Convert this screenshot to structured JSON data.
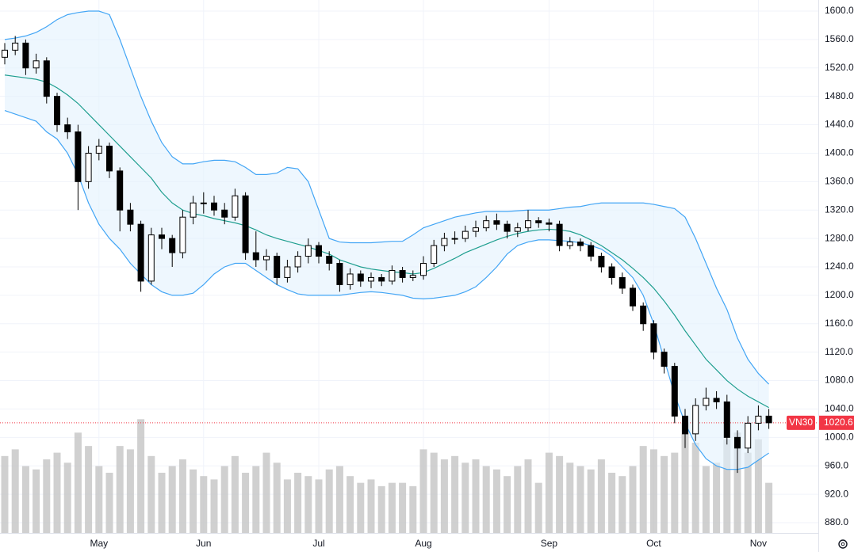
{
  "chart_data": {
    "type": "candlestick",
    "symbol": "VN30",
    "categories": [
      null,
      null,
      null,
      null,
      null,
      null,
      null,
      null,
      null,
      "May",
      null,
      null,
      null,
      null,
      null,
      null,
      null,
      null,
      null,
      "Jun",
      null,
      null,
      null,
      null,
      null,
      null,
      null,
      null,
      null,
      null,
      "Jul",
      null,
      null,
      null,
      null,
      null,
      null,
      null,
      null,
      null,
      "Aug",
      null,
      null,
      null,
      null,
      null,
      null,
      null,
      null,
      null,
      null,
      null,
      "Sep",
      null,
      null,
      null,
      null,
      null,
      null,
      null,
      null,
      null,
      "Oct",
      null,
      null,
      null,
      null,
      null,
      null,
      null,
      null,
      null,
      "Nov",
      null
    ],
    "open": [
      1535,
      1545,
      1555,
      1520,
      1530,
      1480,
      1440,
      1430,
      1360,
      1400,
      1410,
      1375,
      1320,
      1300,
      1220,
      1285,
      1280,
      1260,
      1310,
      1330,
      1330,
      1320,
      1310,
      1340,
      1260,
      1250,
      1255,
      1225,
      1240,
      1255,
      1270,
      1255,
      1245,
      1215,
      1230,
      1220,
      1225,
      1220,
      1235,
      1225,
      1228,
      1245,
      1270,
      1280,
      1280,
      1290,
      1295,
      1305,
      1300,
      1290,
      1295,
      1305,
      1302,
      1300,
      1270,
      1275,
      1270,
      1255,
      1240,
      1225,
      1210,
      1185,
      1160,
      1120,
      1100,
      1030,
      1005,
      1045,
      1055,
      1050,
      1000,
      985,
      1020,
      1030
    ],
    "high": [
      1555,
      1565,
      1560,
      1540,
      1535,
      1485,
      1450,
      1440,
      1410,
      1420,
      1415,
      1380,
      1330,
      1305,
      1295,
      1295,
      1285,
      1320,
      1340,
      1345,
      1340,
      1330,
      1350,
      1345,
      1290,
      1265,
      1260,
      1250,
      1262,
      1280,
      1275,
      1262,
      1250,
      1238,
      1235,
      1232,
      1230,
      1242,
      1240,
      1235,
      1255,
      1278,
      1288,
      1290,
      1298,
      1305,
      1312,
      1315,
      1305,
      1302,
      1320,
      1310,
      1308,
      1305,
      1282,
      1280,
      1275,
      1260,
      1245,
      1232,
      1215,
      1190,
      1165,
      1125,
      1105,
      1040,
      1055,
      1070,
      1065,
      1060,
      1010,
      1030,
      1045,
      1040
    ],
    "low": [
      1525,
      1538,
      1510,
      1512,
      1470,
      1430,
      1420,
      1320,
      1350,
      1390,
      1365,
      1290,
      1290,
      1205,
      1215,
      1265,
      1240,
      1252,
      1300,
      1315,
      1312,
      1300,
      1305,
      1250,
      1240,
      1235,
      1215,
      1218,
      1232,
      1245,
      1245,
      1235,
      1205,
      1208,
      1212,
      1210,
      1213,
      1215,
      1218,
      1220,
      1222,
      1240,
      1262,
      1272,
      1275,
      1282,
      1290,
      1292,
      1280,
      1282,
      1290,
      1295,
      1290,
      1262,
      1265,
      1262,
      1248,
      1232,
      1215,
      1202,
      1178,
      1150,
      1110,
      1090,
      1020,
      985,
      995,
      1038,
      1040,
      990,
      950,
      978,
      1010,
      1012
    ],
    "close": [
      1545,
      1555,
      1520,
      1530,
      1480,
      1440,
      1430,
      1360,
      1400,
      1410,
      1375,
      1320,
      1300,
      1220,
      1285,
      1280,
      1260,
      1310,
      1330,
      1330,
      1320,
      1310,
      1340,
      1260,
      1250,
      1255,
      1225,
      1240,
      1255,
      1270,
      1255,
      1245,
      1215,
      1230,
      1220,
      1225,
      1220,
      1235,
      1225,
      1228,
      1245,
      1270,
      1280,
      1280,
      1290,
      1295,
      1305,
      1300,
      1290,
      1295,
      1305,
      1302,
      1300,
      1270,
      1275,
      1270,
      1255,
      1240,
      1225,
      1210,
      1185,
      1160,
      1120,
      1100,
      1030,
      1005,
      1045,
      1055,
      1050,
      1000,
      985,
      1020,
      1030,
      1020.6
    ],
    "volume": [
      230,
      250,
      200,
      190,
      220,
      240,
      210,
      300,
      260,
      200,
      180,
      260,
      250,
      340,
      230,
      180,
      200,
      220,
      190,
      170,
      160,
      200,
      230,
      180,
      200,
      240,
      210,
      160,
      180,
      170,
      160,
      190,
      200,
      170,
      150,
      160,
      140,
      150,
      150,
      140,
      250,
      240,
      220,
      230,
      210,
      220,
      200,
      190,
      170,
      200,
      220,
      150,
      240,
      230,
      210,
      200,
      190,
      220,
      180,
      170,
      200,
      260,
      250,
      230,
      240,
      330,
      270,
      200,
      210,
      280,
      300,
      240,
      280,
      150
    ],
    "vlim": [
      0,
      400
    ],
    "series": [
      {
        "color": "#42a5f5",
        "values": [
          1560,
          1562,
          1565,
          1570,
          1578,
          1588,
          1595,
          1598,
          1600,
          1600,
          1595,
          1560,
          1520,
          1480,
          1445,
          1415,
          1395,
          1385,
          1385,
          1388,
          1390,
          1390,
          1388,
          1380,
          1370,
          1370,
          1372,
          1380,
          1378,
          1360,
          1320,
          1280,
          1275,
          1274,
          1274,
          1274,
          1275,
          1276,
          1276,
          1285,
          1295,
          1300,
          1305,
          1310,
          1313,
          1316,
          1318,
          1318,
          1318,
          1319,
          1320,
          1320,
          1320,
          1322,
          1324,
          1325,
          1328,
          1330,
          1330,
          1330,
          1330,
          1330,
          1328,
          1325,
          1322,
          1310,
          1280,
          1245,
          1210,
          1180,
          1140,
          1110,
          1090,
          1075
        ]
      },
      {
        "color": "#1e9e8f",
        "values": [
          1510,
          1508,
          1506,
          1504,
          1500,
          1492,
          1482,
          1470,
          1455,
          1440,
          1425,
          1410,
          1395,
          1380,
          1365,
          1345,
          1330,
          1320,
          1315,
          1312,
          1308,
          1305,
          1302,
          1298,
          1292,
          1285,
          1280,
          1276,
          1272,
          1268,
          1263,
          1258,
          1250,
          1245,
          1240,
          1237,
          1235,
          1233,
          1232,
          1230,
          1232,
          1238,
          1245,
          1252,
          1260,
          1266,
          1272,
          1278,
          1283,
          1287,
          1290,
          1292,
          1293,
          1292,
          1290,
          1285,
          1278,
          1270,
          1260,
          1250,
          1238,
          1225,
          1210,
          1192,
          1172,
          1150,
          1130,
          1110,
          1095,
          1080,
          1068,
          1058,
          1050,
          1042
        ]
      },
      {
        "color": "#42a5f5",
        "values": [
          1460,
          1455,
          1450,
          1445,
          1430,
          1420,
          1400,
          1370,
          1330,
          1300,
          1280,
          1265,
          1245,
          1230,
          1215,
          1205,
          1200,
          1200,
          1203,
          1215,
          1230,
          1240,
          1245,
          1245,
          1235,
          1225,
          1215,
          1208,
          1202,
          1200,
          1200,
          1200,
          1200,
          1202,
          1204,
          1205,
          1204,
          1202,
          1200,
          1196,
          1195,
          1196,
          1198,
          1200,
          1205,
          1212,
          1225,
          1240,
          1258,
          1270,
          1275,
          1278,
          1278,
          1277,
          1276,
          1274,
          1270,
          1265,
          1255,
          1240,
          1225,
          1200,
          1160,
          1110,
          1060,
          1020,
          990,
          970,
          960,
          955,
          955,
          958,
          968,
          978
        ]
      }
    ],
    "ylim": [
      865.5,
      1615.6
    ],
    "yticks": [
      {
        "value": 1600,
        "label": "1600.0"
      },
      {
        "value": 1560,
        "label": "1560.0"
      },
      {
        "value": 1520,
        "label": "1520.0"
      },
      {
        "value": 1480,
        "label": "1480.0"
      },
      {
        "value": 1440,
        "label": "1440.0"
      },
      {
        "value": 1400,
        "label": "1400.0"
      },
      {
        "value": 1360,
        "label": "1360.0"
      },
      {
        "value": 1320,
        "label": "1320.0"
      },
      {
        "value": 1280,
        "label": "1280.0"
      },
      {
        "value": 1240,
        "label": "1240.0"
      },
      {
        "value": 1200,
        "label": "1200.0"
      },
      {
        "value": 1160,
        "label": "1160.0"
      },
      {
        "value": 1120,
        "label": "1120.0"
      },
      {
        "value": 1080,
        "label": "1080.0"
      },
      {
        "value": 1040,
        "label": "1040.0"
      },
      {
        "value": 1000,
        "label": "1000.0"
      },
      {
        "value": 960,
        "label": "960.0"
      },
      {
        "value": 920,
        "label": "920.0"
      },
      {
        "value": 880,
        "label": "880.0"
      }
    ],
    "grid": true,
    "up_color": "#ffffff",
    "down_color": "#000000",
    "volume_color": "#c4c4c4",
    "last_color": "#f23645",
    "band_fill": "#e3f2fd"
  }
}
